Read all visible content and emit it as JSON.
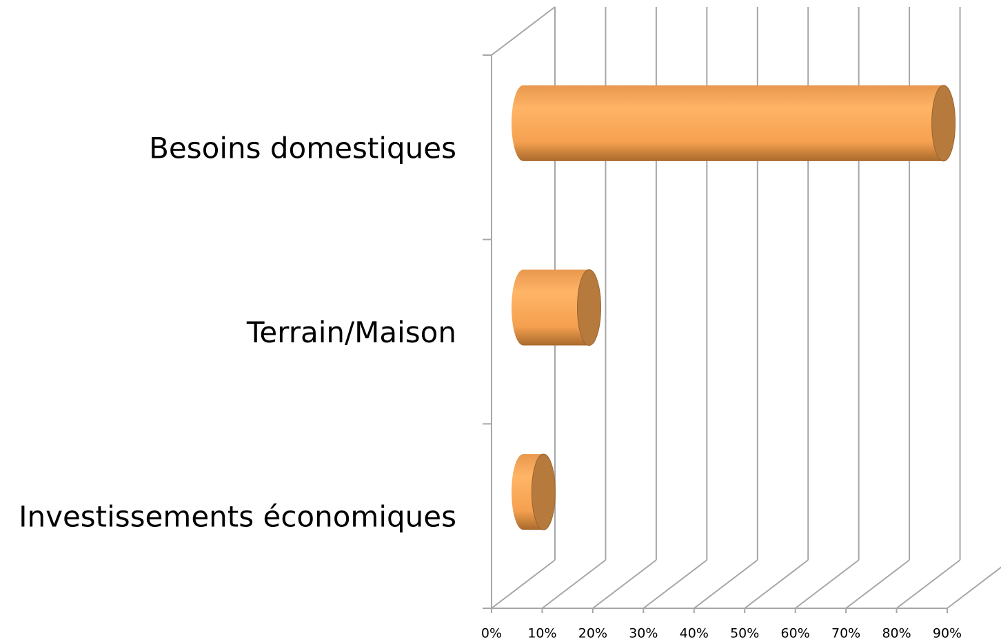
{
  "chart_data": {
    "type": "bar3d_horizontal",
    "categories": [
      "Besoins domestiques",
      "Terrain/Maison",
      "Investissements économiques"
    ],
    "values": [
      83,
      13,
      4
    ],
    "color": "#f9a65a",
    "xlim": [
      0,
      90
    ],
    "xticks": [
      {
        "value": 0,
        "label": "0%"
      },
      {
        "value": 10,
        "label": "10%"
      },
      {
        "value": 20,
        "label": "20%"
      },
      {
        "value": 30,
        "label": "30%"
      },
      {
        "value": 40,
        "label": "40%"
      },
      {
        "value": 50,
        "label": "50%"
      },
      {
        "value": 60,
        "label": "60%"
      },
      {
        "value": 70,
        "label": "70%"
      },
      {
        "value": 80,
        "label": "80%"
      },
      {
        "value": 90,
        "label": "90%"
      }
    ],
    "grid": true
  }
}
